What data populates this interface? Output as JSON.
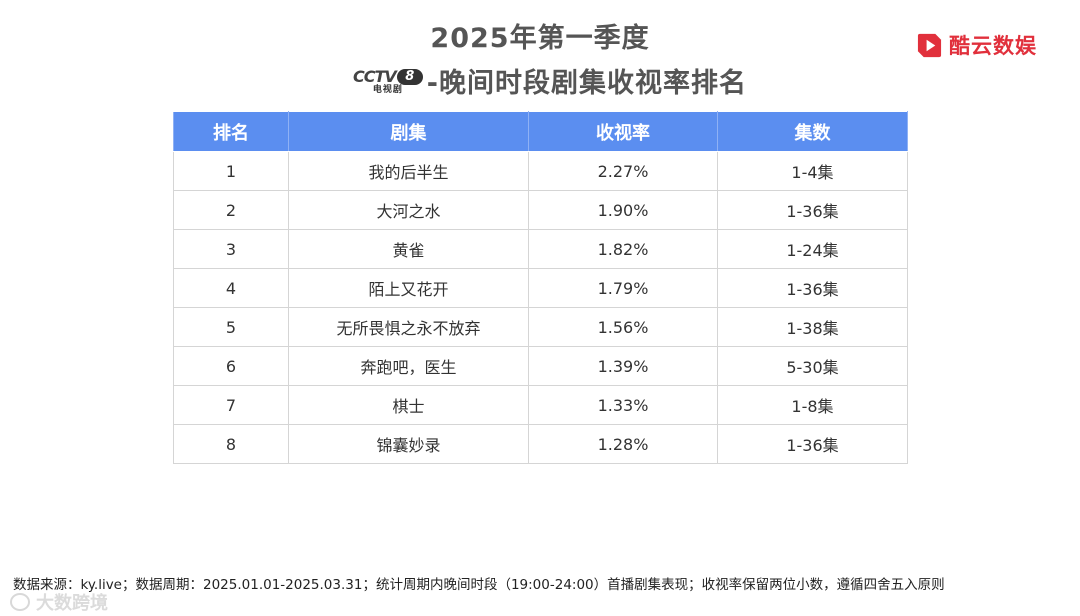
{
  "title": {
    "line1": "2025年第一季度",
    "channel_logo": {
      "brand": "CCTV",
      "number": "8",
      "subtitle": "电视剧"
    },
    "line2": "-晚间时段剧集收视率排名"
  },
  "brand": {
    "name": "酷云数娱",
    "color": "#e1303c"
  },
  "table": {
    "headers": [
      "排名",
      "剧集",
      "收视率",
      "集数"
    ],
    "header_color": "#5b8ef0",
    "rows": [
      {
        "rank": "1",
        "drama": "我的后半生",
        "rating": "2.27%",
        "episodes": "1-4集"
      },
      {
        "rank": "2",
        "drama": "大河之水",
        "rating": "1.90%",
        "episodes": "1-36集"
      },
      {
        "rank": "3",
        "drama": "黄雀",
        "rating": "1.82%",
        "episodes": "1-24集"
      },
      {
        "rank": "4",
        "drama": "陌上又花开",
        "rating": "1.79%",
        "episodes": "1-36集"
      },
      {
        "rank": "5",
        "drama": "无所畏惧之永不放弃",
        "rating": "1.56%",
        "episodes": "1-38集"
      },
      {
        "rank": "6",
        "drama": "奔跑吧，医生",
        "rating": "1.39%",
        "episodes": "5-30集"
      },
      {
        "rank": "7",
        "drama": "棋士",
        "rating": "1.33%",
        "episodes": "1-8集"
      },
      {
        "rank": "8",
        "drama": "锦囊妙录",
        "rating": "1.28%",
        "episodes": "1-36集"
      }
    ]
  },
  "footnote": "数据来源：ky.live；数据周期：2025.01.01-2025.03.31；统计周期内晚间时段（19:00-24:00）首播剧集表现；收视率保留两位小数，遵循四舍五入原则",
  "watermark": "大数跨境"
}
